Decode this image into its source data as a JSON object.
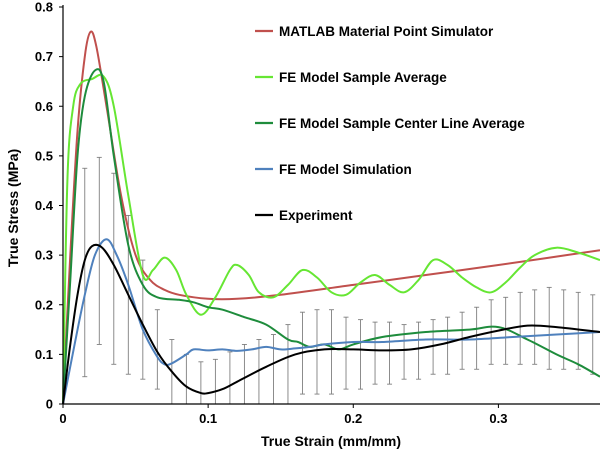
{
  "chart_data": {
    "type": "line",
    "title": "",
    "xlabel": "True Strain (mm/mm)",
    "ylabel": "True Stress (MPa)",
    "xlim": [
      0,
      0.37
    ],
    "ylim": [
      0,
      0.8
    ],
    "x_ticks": [
      0,
      0.1,
      0.2,
      0.3
    ],
    "x_tick_labels": [
      "0",
      "0.1",
      "0.2",
      "0.3"
    ],
    "y_ticks": [
      0,
      0.1,
      0.2,
      0.3,
      0.4,
      0.5,
      0.6,
      0.7,
      0.8
    ],
    "y_tick_labels": [
      "0",
      "0.1",
      "0.2",
      "0.3",
      "0.4",
      "0.5",
      "0.6",
      "0.7",
      "0.8"
    ],
    "grid": false,
    "legend_position": "top-right",
    "series": [
      {
        "name": "MATLAB Material Point Simulator",
        "color": "#C0504D",
        "points": [
          [
            0,
            0
          ],
          [
            0.005,
            0.3
          ],
          [
            0.01,
            0.55
          ],
          [
            0.015,
            0.7
          ],
          [
            0.019,
            0.75
          ],
          [
            0.023,
            0.72
          ],
          [
            0.03,
            0.6
          ],
          [
            0.04,
            0.42
          ],
          [
            0.05,
            0.3
          ],
          [
            0.06,
            0.25
          ],
          [
            0.07,
            0.23
          ],
          [
            0.08,
            0.22
          ],
          [
            0.1,
            0.212
          ],
          [
            0.12,
            0.212
          ],
          [
            0.15,
            0.22
          ],
          [
            0.2,
            0.24
          ],
          [
            0.25,
            0.26
          ],
          [
            0.3,
            0.28
          ],
          [
            0.37,
            0.31
          ]
        ]
      },
      {
        "name": "FE Model Sample Average",
        "color": "#66E633",
        "points": [
          [
            0,
            0
          ],
          [
            0.003,
            0.45
          ],
          [
            0.007,
            0.6
          ],
          [
            0.012,
            0.645
          ],
          [
            0.02,
            0.655
          ],
          [
            0.028,
            0.66
          ],
          [
            0.035,
            0.6
          ],
          [
            0.045,
            0.42
          ],
          [
            0.055,
            0.26
          ],
          [
            0.062,
            0.27
          ],
          [
            0.07,
            0.295
          ],
          [
            0.078,
            0.27
          ],
          [
            0.085,
            0.22
          ],
          [
            0.095,
            0.18
          ],
          [
            0.105,
            0.215
          ],
          [
            0.115,
            0.27
          ],
          [
            0.12,
            0.28
          ],
          [
            0.128,
            0.26
          ],
          [
            0.135,
            0.225
          ],
          [
            0.145,
            0.215
          ],
          [
            0.155,
            0.24
          ],
          [
            0.165,
            0.27
          ],
          [
            0.175,
            0.255
          ],
          [
            0.185,
            0.225
          ],
          [
            0.195,
            0.22
          ],
          [
            0.205,
            0.245
          ],
          [
            0.215,
            0.26
          ],
          [
            0.225,
            0.24
          ],
          [
            0.235,
            0.225
          ],
          [
            0.245,
            0.25
          ],
          [
            0.255,
            0.29
          ],
          [
            0.265,
            0.28
          ],
          [
            0.275,
            0.255
          ],
          [
            0.285,
            0.235
          ],
          [
            0.295,
            0.225
          ],
          [
            0.305,
            0.245
          ],
          [
            0.315,
            0.275
          ],
          [
            0.325,
            0.3
          ],
          [
            0.34,
            0.315
          ],
          [
            0.355,
            0.305
          ],
          [
            0.37,
            0.29
          ]
        ]
      },
      {
        "name": "FE Model Sample Center Line Average",
        "color": "#1E8C3C",
        "points": [
          [
            0,
            0
          ],
          [
            0.005,
            0.25
          ],
          [
            0.01,
            0.5
          ],
          [
            0.015,
            0.62
          ],
          [
            0.022,
            0.672
          ],
          [
            0.028,
            0.65
          ],
          [
            0.035,
            0.5
          ],
          [
            0.045,
            0.32
          ],
          [
            0.055,
            0.24
          ],
          [
            0.065,
            0.215
          ],
          [
            0.08,
            0.21
          ],
          [
            0.09,
            0.205
          ],
          [
            0.1,
            0.195
          ],
          [
            0.11,
            0.19
          ],
          [
            0.125,
            0.175
          ],
          [
            0.14,
            0.16
          ],
          [
            0.155,
            0.13
          ],
          [
            0.162,
            0.125
          ],
          [
            0.17,
            0.115
          ],
          [
            0.18,
            0.12
          ],
          [
            0.19,
            0.11
          ],
          [
            0.2,
            0.12
          ],
          [
            0.22,
            0.135
          ],
          [
            0.25,
            0.145
          ],
          [
            0.28,
            0.15
          ],
          [
            0.3,
            0.155
          ],
          [
            0.32,
            0.13
          ],
          [
            0.34,
            0.1
          ],
          [
            0.355,
            0.08
          ],
          [
            0.37,
            0.055
          ]
        ]
      },
      {
        "name": "FE Model Simulation",
        "color": "#4F81BD",
        "points": [
          [
            0,
            0
          ],
          [
            0.008,
            0.12
          ],
          [
            0.015,
            0.22
          ],
          [
            0.022,
            0.3
          ],
          [
            0.03,
            0.332
          ],
          [
            0.037,
            0.3
          ],
          [
            0.045,
            0.24
          ],
          [
            0.055,
            0.15
          ],
          [
            0.065,
            0.095
          ],
          [
            0.07,
            0.08
          ],
          [
            0.075,
            0.082
          ],
          [
            0.085,
            0.1
          ],
          [
            0.09,
            0.11
          ],
          [
            0.1,
            0.108
          ],
          [
            0.11,
            0.11
          ],
          [
            0.12,
            0.107
          ],
          [
            0.13,
            0.11
          ],
          [
            0.14,
            0.115
          ],
          [
            0.15,
            0.11
          ],
          [
            0.16,
            0.112
          ],
          [
            0.17,
            0.115
          ],
          [
            0.18,
            0.12
          ],
          [
            0.2,
            0.125
          ],
          [
            0.22,
            0.125
          ],
          [
            0.25,
            0.13
          ],
          [
            0.28,
            0.13
          ],
          [
            0.31,
            0.135
          ],
          [
            0.34,
            0.14
          ],
          [
            0.37,
            0.145
          ]
        ]
      },
      {
        "name": "Experiment",
        "color": "#000000",
        "points": [
          [
            0,
            0
          ],
          [
            0.005,
            0.12
          ],
          [
            0.01,
            0.22
          ],
          [
            0.015,
            0.29
          ],
          [
            0.02,
            0.318
          ],
          [
            0.027,
            0.315
          ],
          [
            0.035,
            0.28
          ],
          [
            0.045,
            0.22
          ],
          [
            0.055,
            0.16
          ],
          [
            0.065,
            0.105
          ],
          [
            0.075,
            0.065
          ],
          [
            0.085,
            0.035
          ],
          [
            0.095,
            0.022
          ],
          [
            0.1,
            0.022
          ],
          [
            0.11,
            0.03
          ],
          [
            0.12,
            0.045
          ],
          [
            0.14,
            0.075
          ],
          [
            0.16,
            0.1
          ],
          [
            0.18,
            0.11
          ],
          [
            0.2,
            0.11
          ],
          [
            0.22,
            0.108
          ],
          [
            0.24,
            0.11
          ],
          [
            0.26,
            0.12
          ],
          [
            0.28,
            0.135
          ],
          [
            0.3,
            0.148
          ],
          [
            0.32,
            0.158
          ],
          [
            0.34,
            0.155
          ],
          [
            0.37,
            0.145
          ]
        ]
      }
    ],
    "error_bars": {
      "series": "Experiment",
      "color": "#7F7F7F",
      "x": [
        0.015,
        0.025,
        0.035,
        0.045,
        0.055,
        0.065,
        0.075,
        0.085,
        0.095,
        0.105,
        0.115,
        0.125,
        0.135,
        0.145,
        0.155,
        0.165,
        0.175,
        0.185,
        0.195,
        0.205,
        0.215,
        0.225,
        0.235,
        0.245,
        0.255,
        0.265,
        0.275,
        0.285,
        0.295,
        0.305,
        0.315,
        0.325,
        0.335,
        0.345,
        0.355,
        0.365
      ],
      "low": [
        0.055,
        0.12,
        0.08,
        0.06,
        0.05,
        0.03,
        0.0,
        0.0,
        0.0,
        0.0,
        0.0,
        0.0,
        0.0,
        0.0,
        0.0,
        0.02,
        0.02,
        0.02,
        0.03,
        0.03,
        0.04,
        0.04,
        0.05,
        0.05,
        0.06,
        0.06,
        0.07,
        0.07,
        0.08,
        0.08,
        0.08,
        0.08,
        0.07,
        0.07,
        0.07,
        0.06
      ],
      "high": [
        0.475,
        0.497,
        0.465,
        0.38,
        0.29,
        0.19,
        0.13,
        0.1,
        0.085,
        0.09,
        0.105,
        0.12,
        0.13,
        0.14,
        0.16,
        0.185,
        0.19,
        0.19,
        0.175,
        0.17,
        0.165,
        0.165,
        0.16,
        0.165,
        0.17,
        0.175,
        0.185,
        0.195,
        0.21,
        0.215,
        0.225,
        0.23,
        0.235,
        0.23,
        0.225,
        0.22
      ]
    }
  }
}
